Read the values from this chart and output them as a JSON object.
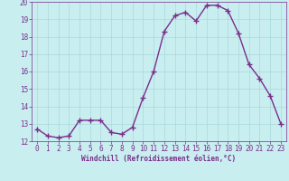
{
  "x": [
    0,
    1,
    2,
    3,
    4,
    5,
    6,
    7,
    8,
    9,
    10,
    11,
    12,
    13,
    14,
    15,
    16,
    17,
    18,
    19,
    20,
    21,
    22,
    23
  ],
  "y": [
    12.7,
    12.3,
    12.2,
    12.3,
    13.2,
    13.2,
    13.2,
    12.5,
    12.4,
    12.8,
    14.5,
    16.0,
    18.3,
    19.2,
    19.4,
    18.9,
    19.8,
    19.8,
    19.5,
    18.2,
    16.4,
    15.6,
    14.6,
    13.0
  ],
  "line_color": "#7b2d8b",
  "marker": "+",
  "marker_color": "#7b2d8b",
  "bg_color": "#c8eef0",
  "grid_color": "#aad8dc",
  "xlabel": "Windchill (Refroidissement éolien,°C)",
  "ylabel": "",
  "xlim": [
    -0.5,
    23.5
  ],
  "ylim": [
    12.0,
    20.0
  ],
  "yticks": [
    12,
    13,
    14,
    15,
    16,
    17,
    18,
    19,
    20
  ],
  "xticks": [
    0,
    1,
    2,
    3,
    4,
    5,
    6,
    7,
    8,
    9,
    10,
    11,
    12,
    13,
    14,
    15,
    16,
    17,
    18,
    19,
    20,
    21,
    22,
    23
  ],
  "tick_color": "#7b2d8b",
  "label_color": "#7b2d8b",
  "line_width": 1.0,
  "marker_size": 4
}
